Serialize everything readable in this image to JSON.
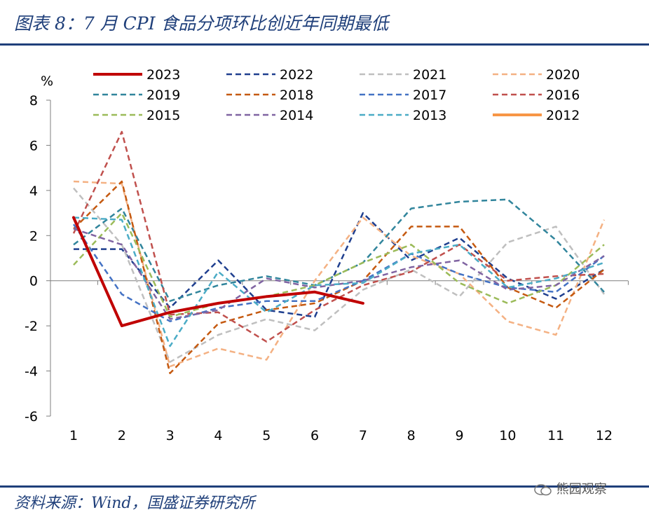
{
  "header": {
    "title": "图表 8：7 月 CPI 食品分项环比创近年同期最低"
  },
  "footer": {
    "source": "资料来源：Wind，国盛证券研究所",
    "watermark": "熊园观察"
  },
  "chart_data": {
    "type": "line",
    "ylabel": "%",
    "ylim": [
      -6,
      8
    ],
    "yticks": [
      -6,
      -4,
      -2,
      0,
      2,
      4,
      6,
      8
    ],
    "categories": [
      "1",
      "2",
      "3",
      "4",
      "5",
      "6",
      "7",
      "8",
      "9",
      "10",
      "11",
      "12"
    ],
    "legend_position": "top",
    "series": [
      {
        "name": "2023",
        "color": "#c00000",
        "dash": "solid",
        "width": 4,
        "values": [
          2.8,
          -2.0,
          -1.4,
          -1.0,
          -0.7,
          -0.5,
          -1.0,
          null,
          null,
          null,
          null,
          null
        ]
      },
      {
        "name": "2022",
        "color": "#1f3f8f",
        "dash": "dashed",
        "width": 2.5,
        "values": [
          1.4,
          1.4,
          -1.2,
          0.9,
          -1.3,
          -1.6,
          3.0,
          0.9,
          1.9,
          0.1,
          -0.8,
          0.5
        ]
      },
      {
        "name": "2021",
        "color": "#bfbfbf",
        "dash": "dashed",
        "width": 2.5,
        "values": [
          4.1,
          1.6,
          -3.6,
          -2.4,
          -1.7,
          -2.2,
          -0.4,
          0.5,
          -0.7,
          1.7,
          2.4,
          -0.6
        ]
      },
      {
        "name": "2020",
        "color": "#f4b183",
        "dash": "dashed",
        "width": 2.5,
        "values": [
          4.4,
          4.3,
          -3.8,
          -3.0,
          -3.5,
          0.0,
          2.8,
          1.1,
          0.3,
          -1.8,
          -2.4,
          2.7
        ]
      },
      {
        "name": "2019",
        "color": "#31859c",
        "dash": "dashed",
        "width": 2.5,
        "values": [
          1.6,
          3.2,
          -0.9,
          -0.2,
          0.2,
          -0.2,
          0.8,
          3.2,
          3.5,
          3.6,
          1.8,
          -0.5
        ]
      },
      {
        "name": "2018",
        "color": "#c55a11",
        "dash": "dashed",
        "width": 2.5,
        "values": [
          2.3,
          4.4,
          -4.1,
          -1.9,
          -1.3,
          -1.0,
          0.0,
          2.4,
          2.4,
          -0.3,
          -1.2,
          0.5
        ]
      },
      {
        "name": "2017",
        "color": "#4472c4",
        "dash": "dashed",
        "width": 2.5,
        "values": [
          2.5,
          -0.6,
          -1.8,
          -1.2,
          -0.9,
          -0.9,
          0.0,
          1.2,
          0.3,
          -0.3,
          -0.5,
          1.1
        ]
      },
      {
        "name": "2016",
        "color": "#c0504d",
        "dash": "dashed",
        "width": 2.5,
        "values": [
          2.1,
          6.6,
          -1.5,
          -1.4,
          -2.7,
          -1.3,
          -0.2,
          0.4,
          1.6,
          0.0,
          0.2,
          0.3
        ]
      },
      {
        "name": "2015",
        "color": "#9bbb59",
        "dash": "dashed",
        "width": 2.5,
        "values": [
          0.7,
          3.0,
          -1.6,
          -1.0,
          -0.7,
          -0.2,
          0.8,
          1.6,
          -0.1,
          -1.0,
          -0.2,
          1.6
        ]
      },
      {
        "name": "2014",
        "color": "#8064a2",
        "dash": "dashed",
        "width": 2.5,
        "values": [
          2.3,
          1.6,
          -1.7,
          -1.3,
          0.1,
          -0.3,
          0.0,
          0.6,
          0.9,
          -0.4,
          -0.2,
          1.1
        ]
      },
      {
        "name": "2013",
        "color": "#4bacc6",
        "dash": "dashed",
        "width": 2.5,
        "values": [
          2.8,
          2.7,
          -2.9,
          0.4,
          -1.4,
          -0.2,
          -0.1,
          1.2,
          1.6,
          -0.3,
          0.1,
          0.8
        ]
      },
      {
        "name": "2012",
        "color": "#f79646",
        "dash": "solid",
        "width": 4,
        "values": [
          null,
          null,
          null,
          null,
          null,
          null,
          null,
          null,
          null,
          null,
          null,
          null
        ]
      }
    ]
  }
}
